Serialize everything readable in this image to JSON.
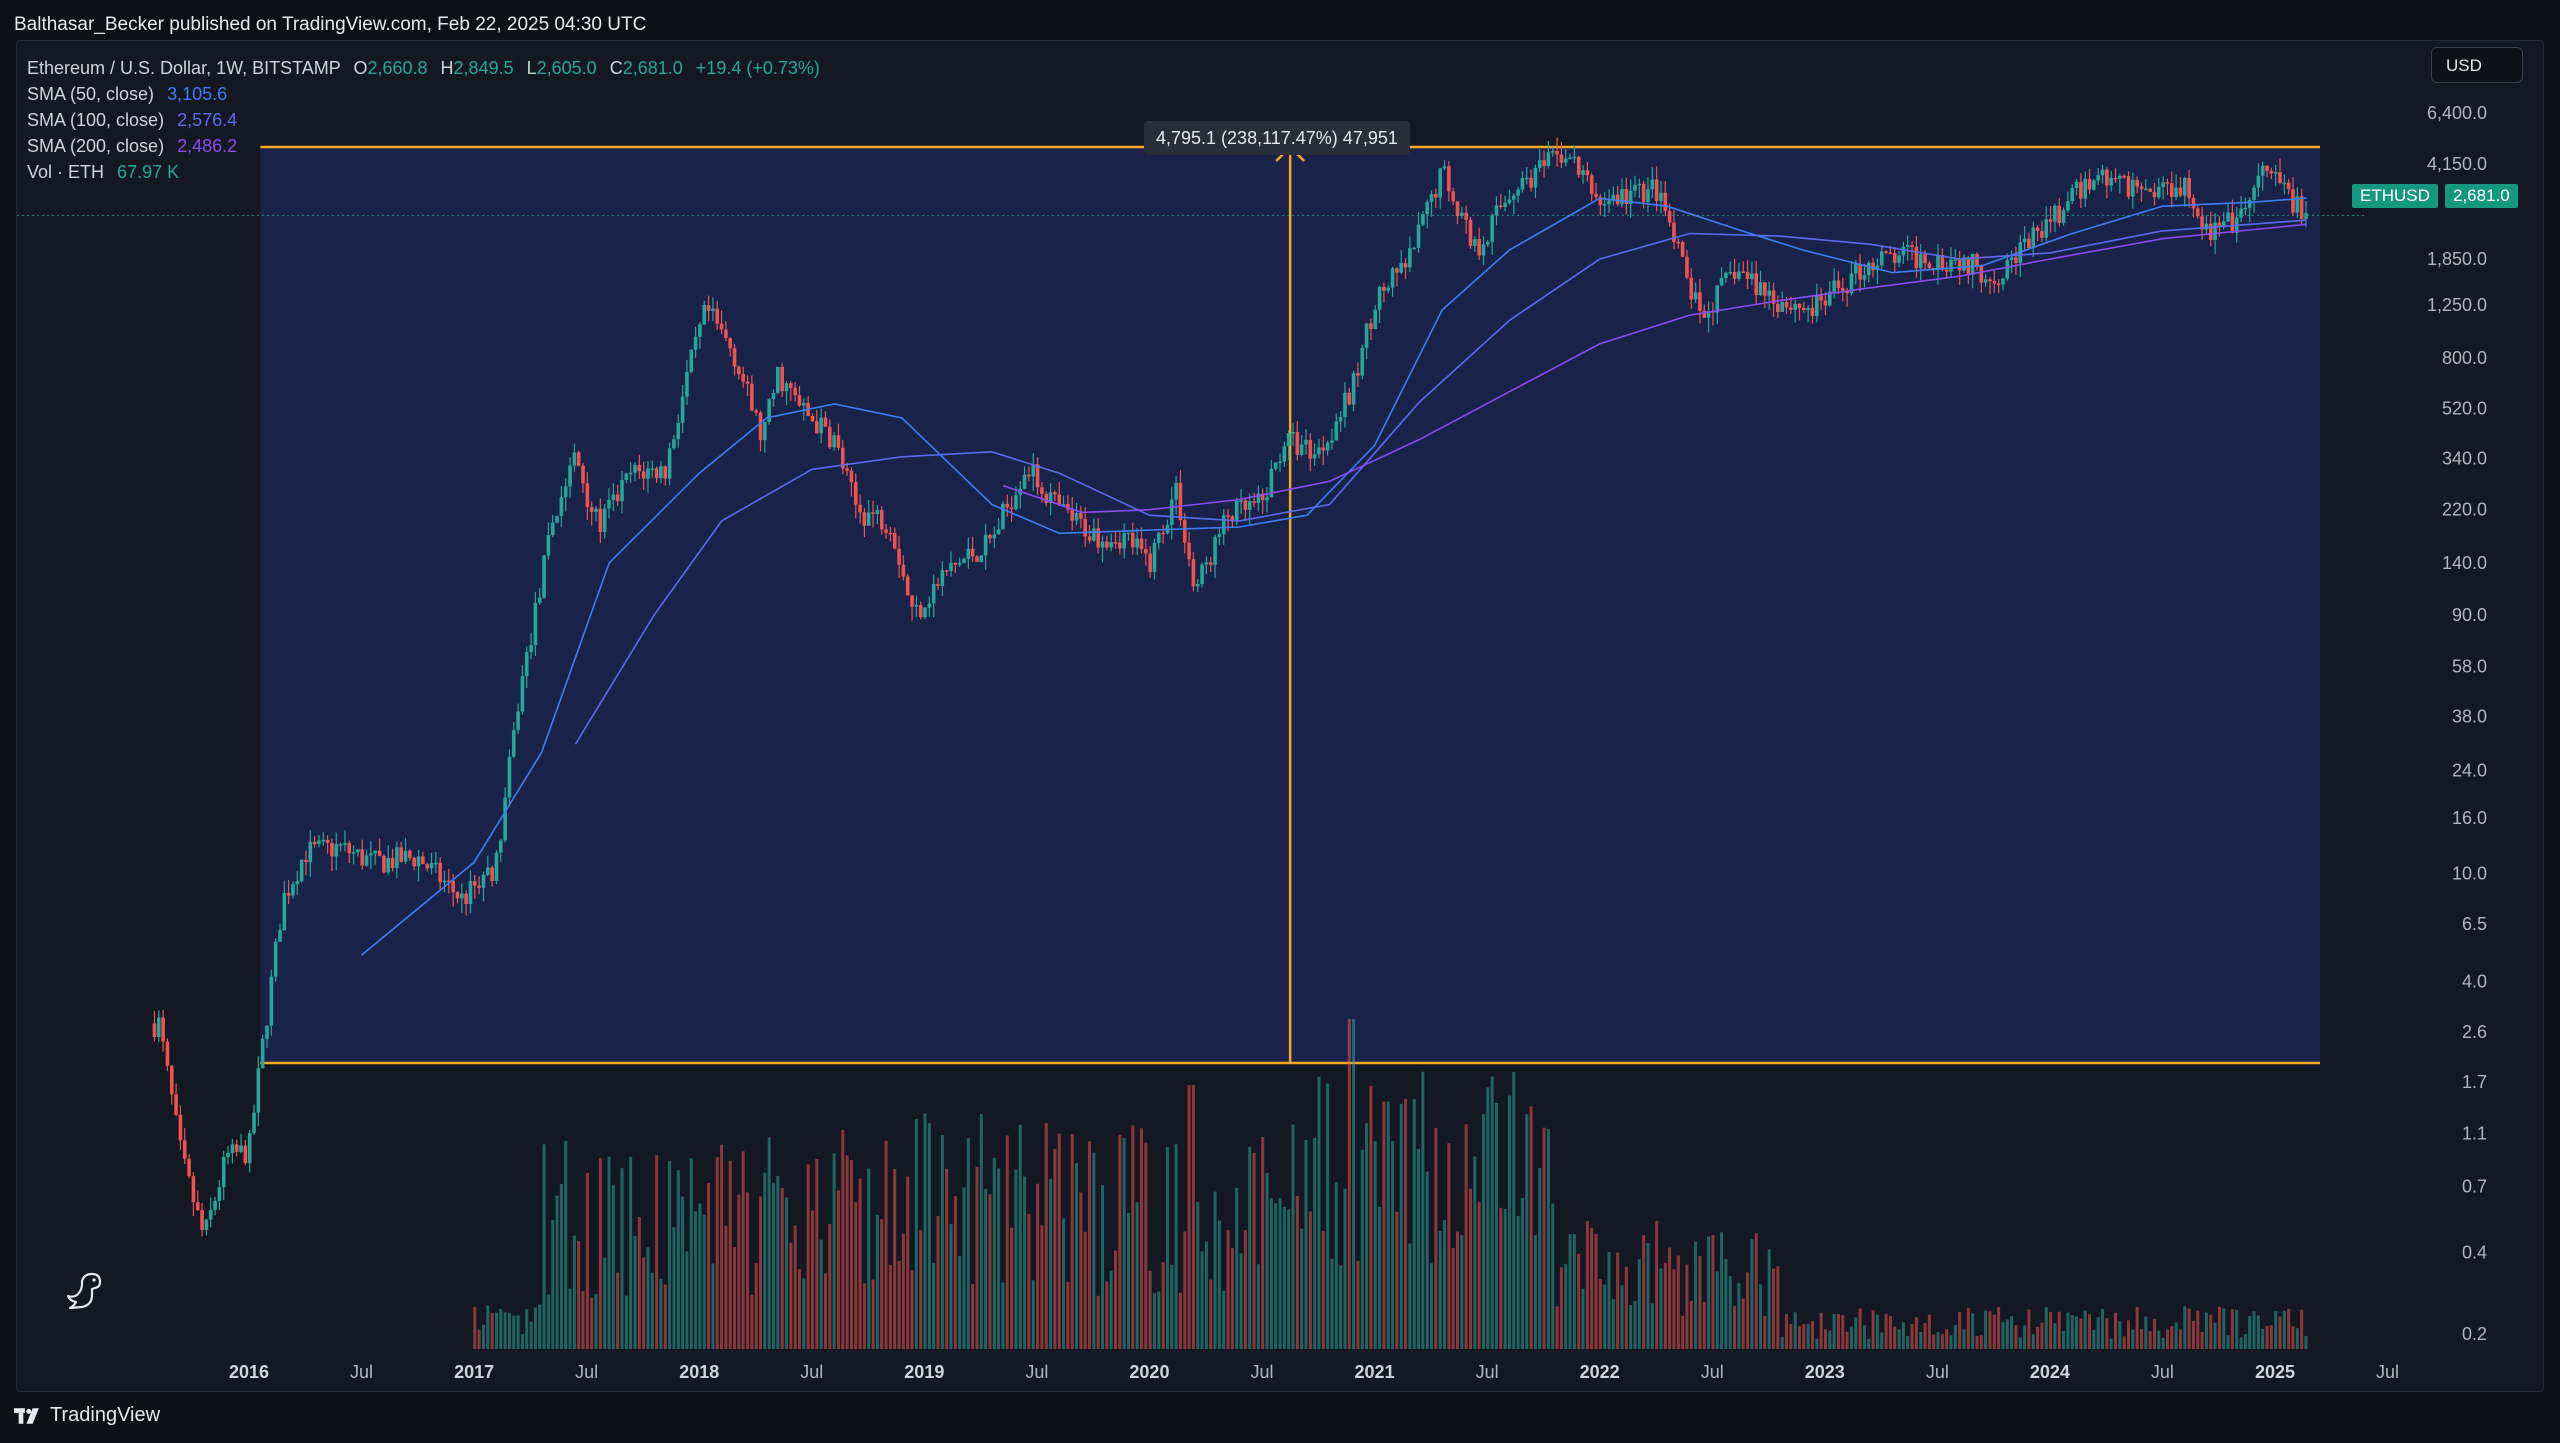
{
  "header": {
    "published_by": "Balthasar_Becker published on TradingView.com, Feb 22, 2025 04:30 UTC"
  },
  "legend": {
    "symbol": "Ethereum / U.S. Dollar, 1W, BITSTAMP",
    "open_label": "O",
    "open": "2,660.8",
    "high_label": "H",
    "high": "2,849.5",
    "low_label": "L",
    "low": "2,605.0",
    "close_label": "C",
    "close": "2,681.0",
    "change": "+19.4 (+0.73%)",
    "sma50_label": "SMA (50, close)",
    "sma50_value": "3,105.6",
    "sma100_label": "SMA (100, close)",
    "sma100_value": "2,576.4",
    "sma200_label": "SMA (200, close)",
    "sma200_value": "2,486.2",
    "vol_label": "Vol · ETH",
    "vol_value": "67.97 K"
  },
  "currency_button": "USD",
  "measure_label": "4,795.1 (238,117.47%) 47,951",
  "price_tag": {
    "symbol": "ETHUSD",
    "value": "2,681.0"
  },
  "footer": {
    "brand": "TradingView"
  },
  "colors": {
    "up": "#26a69a",
    "down": "#ef5350",
    "sma50": "#3f7df4",
    "sma100": "#5b6bf0",
    "sma200": "#8a4bf2",
    "range_box": "#1a2650",
    "range_line": "#f5a623"
  },
  "chart_data": {
    "type": "candlestick",
    "scale": "log",
    "price_axis_labels": [
      "6,400.0",
      "4,150.0",
      "2,681.0",
      "1,850.0",
      "1,250.0",
      "800.0",
      "520.0",
      "340.0",
      "220.0",
      "140.0",
      "90.0",
      "58.0",
      "38.0",
      "24.0",
      "16.0",
      "10.0",
      "6.5",
      "4.0",
      "2.6",
      "1.7",
      "1.1",
      "0.7",
      "0.4",
      "0.2"
    ],
    "time_axis_labels": [
      "2016",
      "Jul",
      "2017",
      "Jul",
      "2018",
      "Jul",
      "2019",
      "Jul",
      "2020",
      "Jul",
      "2021",
      "Jul",
      "2022",
      "Jul",
      "2023",
      "Jul",
      "2024",
      "Jul",
      "2025",
      "Jul"
    ],
    "price_path": [
      {
        "t": 2015.6,
        "p": 2.8
      },
      {
        "t": 2015.7,
        "p": 0.9
      },
      {
        "t": 2015.8,
        "p": 0.45
      },
      {
        "t": 2015.9,
        "p": 0.9
      },
      {
        "t": 2016.0,
        "p": 0.95
      },
      {
        "t": 2016.05,
        "p": 2.0
      },
      {
        "t": 2016.15,
        "p": 8.0
      },
      {
        "t": 2016.25,
        "p": 12.0
      },
      {
        "t": 2016.4,
        "p": 12.5
      },
      {
        "t": 2016.55,
        "p": 11.0
      },
      {
        "t": 2016.75,
        "p": 11.5
      },
      {
        "t": 2016.95,
        "p": 8.0
      },
      {
        "t": 2017.1,
        "p": 11.0
      },
      {
        "t": 2017.2,
        "p": 45.0
      },
      {
        "t": 2017.35,
        "p": 200.0
      },
      {
        "t": 2017.45,
        "p": 350.0
      },
      {
        "t": 2017.55,
        "p": 190.0
      },
      {
        "t": 2017.7,
        "p": 300.0
      },
      {
        "t": 2017.85,
        "p": 310.0
      },
      {
        "t": 2017.95,
        "p": 700.0
      },
      {
        "t": 2018.03,
        "p": 1200.0
      },
      {
        "t": 2018.15,
        "p": 850.0
      },
      {
        "t": 2018.28,
        "p": 400.0
      },
      {
        "t": 2018.35,
        "p": 700.0
      },
      {
        "t": 2018.45,
        "p": 520.0
      },
      {
        "t": 2018.6,
        "p": 400.0
      },
      {
        "t": 2018.7,
        "p": 220.0
      },
      {
        "t": 2018.85,
        "p": 200.0
      },
      {
        "t": 2018.95,
        "p": 90.0
      },
      {
        "t": 2019.1,
        "p": 130.0
      },
      {
        "t": 2019.3,
        "p": 170.0
      },
      {
        "t": 2019.45,
        "p": 320.0
      },
      {
        "t": 2019.6,
        "p": 220.0
      },
      {
        "t": 2019.75,
        "p": 180.0
      },
      {
        "t": 2019.9,
        "p": 175.0
      },
      {
        "t": 2020.0,
        "p": 140.0
      },
      {
        "t": 2020.12,
        "p": 265.0
      },
      {
        "t": 2020.2,
        "p": 110.0
      },
      {
        "t": 2020.35,
        "p": 210.0
      },
      {
        "t": 2020.5,
        "p": 230.0
      },
      {
        "t": 2020.6,
        "p": 400.0
      },
      {
        "t": 2020.75,
        "p": 360.0
      },
      {
        "t": 2020.9,
        "p": 600.0
      },
      {
        "t": 2021.0,
        "p": 1300.0
      },
      {
        "t": 2021.15,
        "p": 1800.0
      },
      {
        "t": 2021.3,
        "p": 4000.0
      },
      {
        "t": 2021.45,
        "p": 2000.0
      },
      {
        "t": 2021.6,
        "p": 3300.0
      },
      {
        "t": 2021.85,
        "p": 4600.0
      },
      {
        "t": 2022.0,
        "p": 3000.0
      },
      {
        "t": 2022.25,
        "p": 3400.0
      },
      {
        "t": 2022.45,
        "p": 1100.0
      },
      {
        "t": 2022.6,
        "p": 1700.0
      },
      {
        "t": 2022.8,
        "p": 1300.0
      },
      {
        "t": 2022.95,
        "p": 1200.0
      },
      {
        "t": 2023.2,
        "p": 1800.0
      },
      {
        "t": 2023.35,
        "p": 1900.0
      },
      {
        "t": 2023.6,
        "p": 1850.0
      },
      {
        "t": 2023.75,
        "p": 1600.0
      },
      {
        "t": 2023.95,
        "p": 2300.0
      },
      {
        "t": 2024.2,
        "p": 3800.0
      },
      {
        "t": 2024.45,
        "p": 3300.0
      },
      {
        "t": 2024.6,
        "p": 3600.0
      },
      {
        "t": 2024.7,
        "p": 2300.0
      },
      {
        "t": 2024.85,
        "p": 2600.0
      },
      {
        "t": 2024.95,
        "p": 3900.0
      },
      {
        "t": 2025.05,
        "p": 3300.0
      },
      {
        "t": 2025.14,
        "p": 2681.0
      }
    ],
    "sma50_path": [
      {
        "t": 2016.5,
        "p": 5.0
      },
      {
        "t": 2017.0,
        "p": 11.0
      },
      {
        "t": 2017.3,
        "p": 28.0
      },
      {
        "t": 2017.6,
        "p": 140.0
      },
      {
        "t": 2018.0,
        "p": 300.0
      },
      {
        "t": 2018.3,
        "p": 480.0
      },
      {
        "t": 2018.6,
        "p": 540.0
      },
      {
        "t": 2018.9,
        "p": 480.0
      },
      {
        "t": 2019.3,
        "p": 230.0
      },
      {
        "t": 2019.6,
        "p": 180.0
      },
      {
        "t": 2020.0,
        "p": 185.0
      },
      {
        "t": 2020.4,
        "p": 190.0
      },
      {
        "t": 2020.7,
        "p": 210.0
      },
      {
        "t": 2021.0,
        "p": 380.0
      },
      {
        "t": 2021.3,
        "p": 1200.0
      },
      {
        "t": 2021.6,
        "p": 2000.0
      },
      {
        "t": 2022.0,
        "p": 3100.0
      },
      {
        "t": 2022.3,
        "p": 2900.0
      },
      {
        "t": 2022.6,
        "p": 2400.0
      },
      {
        "t": 2022.9,
        "p": 2000.0
      },
      {
        "t": 2023.3,
        "p": 1650.0
      },
      {
        "t": 2023.7,
        "p": 1750.0
      },
      {
        "t": 2024.1,
        "p": 2300.0
      },
      {
        "t": 2024.5,
        "p": 2900.0
      },
      {
        "t": 2024.9,
        "p": 3000.0
      },
      {
        "t": 2025.14,
        "p": 3105.6
      }
    ],
    "sma100_path": [
      {
        "t": 2017.45,
        "p": 30.0
      },
      {
        "t": 2017.8,
        "p": 90.0
      },
      {
        "t": 2018.1,
        "p": 200.0
      },
      {
        "t": 2018.5,
        "p": 310.0
      },
      {
        "t": 2018.9,
        "p": 345.0
      },
      {
        "t": 2019.3,
        "p": 360.0
      },
      {
        "t": 2019.6,
        "p": 300.0
      },
      {
        "t": 2020.0,
        "p": 210.0
      },
      {
        "t": 2020.4,
        "p": 200.0
      },
      {
        "t": 2020.8,
        "p": 230.0
      },
      {
        "t": 2021.2,
        "p": 550.0
      },
      {
        "t": 2021.6,
        "p": 1100.0
      },
      {
        "t": 2022.0,
        "p": 1850.0
      },
      {
        "t": 2022.4,
        "p": 2300.0
      },
      {
        "t": 2022.8,
        "p": 2250.0
      },
      {
        "t": 2023.2,
        "p": 2100.0
      },
      {
        "t": 2023.6,
        "p": 1850.0
      },
      {
        "t": 2024.0,
        "p": 1950.0
      },
      {
        "t": 2024.5,
        "p": 2350.0
      },
      {
        "t": 2025.14,
        "p": 2576.4
      }
    ],
    "sma200_path": [
      {
        "t": 2019.35,
        "p": 270.0
      },
      {
        "t": 2019.7,
        "p": 215.0
      },
      {
        "t": 2020.0,
        "p": 220.0
      },
      {
        "t": 2020.4,
        "p": 240.0
      },
      {
        "t": 2020.8,
        "p": 280.0
      },
      {
        "t": 2021.2,
        "p": 400.0
      },
      {
        "t": 2021.6,
        "p": 600.0
      },
      {
        "t": 2022.0,
        "p": 900.0
      },
      {
        "t": 2022.4,
        "p": 1150.0
      },
      {
        "t": 2022.8,
        "p": 1300.0
      },
      {
        "t": 2023.2,
        "p": 1450.0
      },
      {
        "t": 2023.6,
        "p": 1600.0
      },
      {
        "t": 2024.0,
        "p": 1850.0
      },
      {
        "t": 2024.5,
        "p": 2200.0
      },
      {
        "t": 2025.14,
        "p": 2486.2
      }
    ],
    "range_measure": {
      "start_t": 2016.05,
      "end_t": 2025.2,
      "low": 2.0,
      "high": 4795.1
    }
  }
}
